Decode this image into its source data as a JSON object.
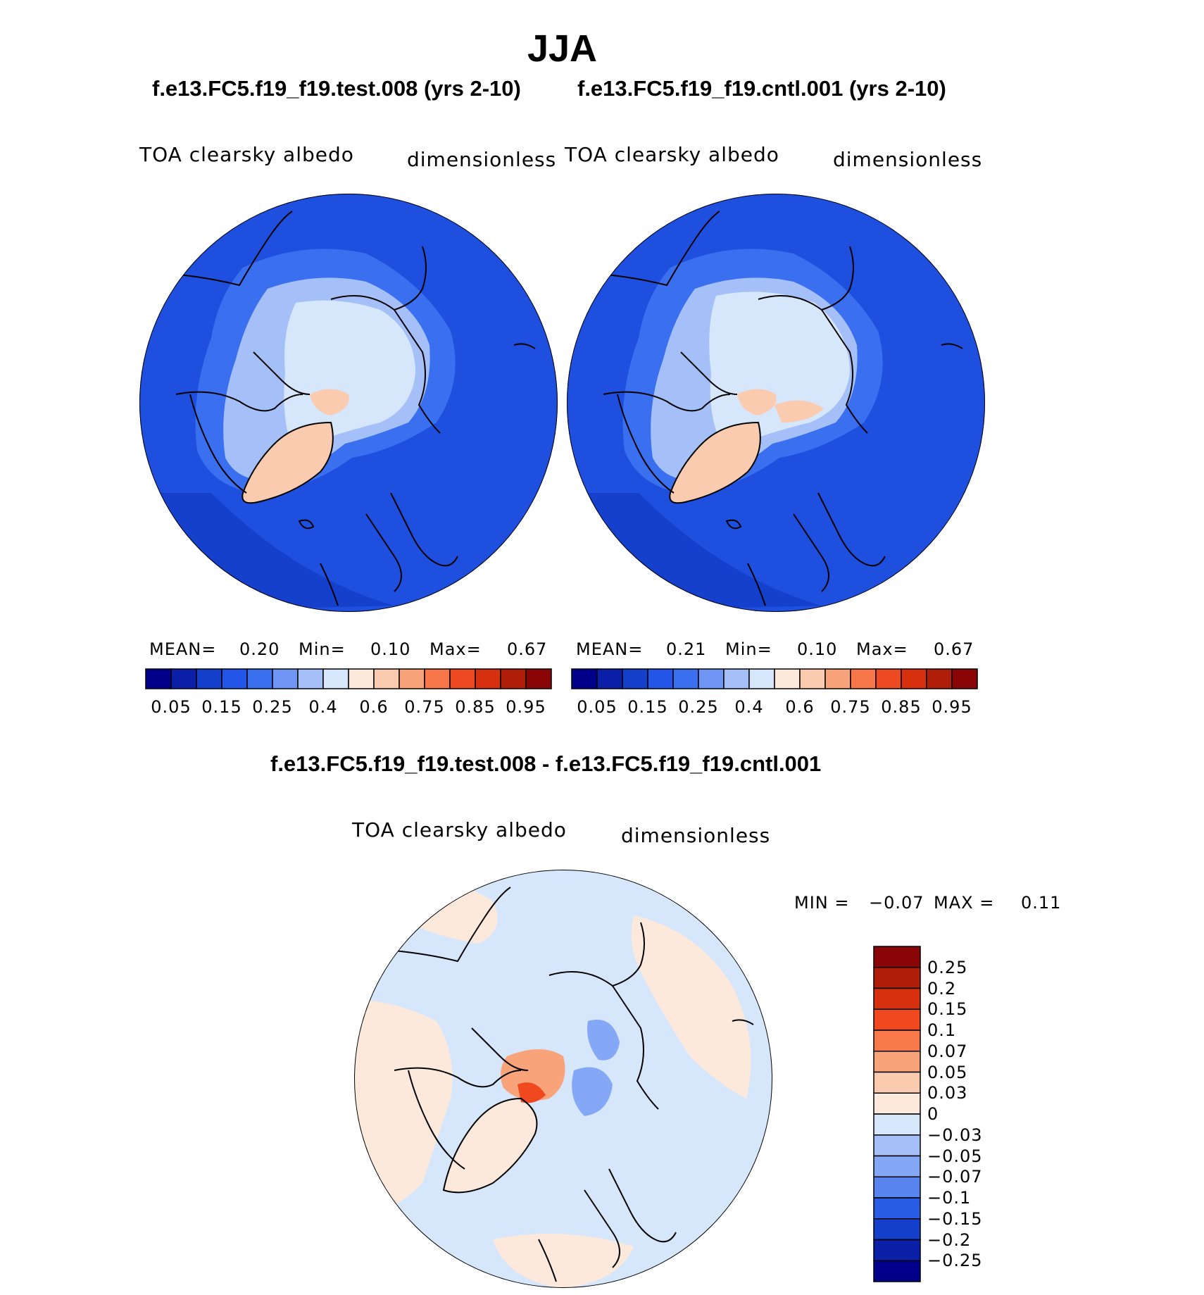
{
  "season_title": "JJA",
  "panels": [
    {
      "case_title": "f.e13.FC5.f19_f19.test.008 (yrs 2-10)",
      "variable": "TOA clearsky albedo",
      "units": "dimensionless",
      "mean_label": "MEAN=",
      "mean": "0.20",
      "min_label": "Min=",
      "min": "0.10",
      "max_label": "Max=",
      "max": "0.67"
    },
    {
      "case_title": "f.e13.FC5.f19_f19.cntl.001 (yrs 2-10)",
      "variable": "TOA clearsky albedo",
      "units": "dimensionless",
      "mean_label": "MEAN=",
      "mean": "0.21",
      "min_label": "Min=",
      "min": "0.10",
      "max_label": "Max=",
      "max": "0.67"
    }
  ],
  "abs_colorbar": {
    "colors": [
      "#00008b",
      "#0b1fa8",
      "#1440cc",
      "#2255e8",
      "#3a6fef",
      "#6f96f4",
      "#a5c0f8",
      "#d6e6fb",
      "#fde9dc",
      "#fbcbb0",
      "#f9a37b",
      "#f7774a",
      "#ee4b22",
      "#d6300e",
      "#b01e09",
      "#8a0606"
    ],
    "labels": [
      "0.05",
      "0.15",
      "0.25",
      "0.4",
      "0.6",
      "0.75",
      "0.85",
      "0.95"
    ]
  },
  "diff_panel": {
    "title": "f.e13.FC5.f19_f19.test.008 - f.e13.FC5.f19_f19.cntl.001",
    "variable": "TOA clearsky albedo",
    "units": "dimensionless",
    "min_label": "MIN =",
    "min": "−0.07",
    "max_label": "MAX =",
    "max": "0.11"
  },
  "diff_colorbar": {
    "colors": [
      "#8a0606",
      "#b01e09",
      "#d6300e",
      "#f0481f",
      "#f87a4b",
      "#f9a37b",
      "#fbcbb0",
      "#fde9dc",
      "#d6e6fb",
      "#a5c0f8",
      "#84a8f6",
      "#5884ef",
      "#2a5de6",
      "#1440cc",
      "#0b1fa8",
      "#00008b"
    ],
    "labels": [
      "0.25",
      "0.2",
      "0.15",
      "0.1",
      "0.07",
      "0.05",
      "0.03",
      "0",
      "−0.03",
      "−0.05",
      "−0.07",
      "−0.1",
      "−0.15",
      "−0.2",
      "−0.25"
    ]
  },
  "map_colors": {
    "ocean": "#1e4fde",
    "ocean_dark": "#1440cc",
    "mid": "#3a6fef",
    "light": "#a5c0f8",
    "ice": "#d6e6fb",
    "land_high": "#fbcbb0",
    "diff_neg": "#d6e6fb",
    "diff_pos": "#fde9dc",
    "diff_pos2": "#f9a37b",
    "diff_pos3": "#f0481f",
    "diff_neg2": "#84a8f6"
  }
}
